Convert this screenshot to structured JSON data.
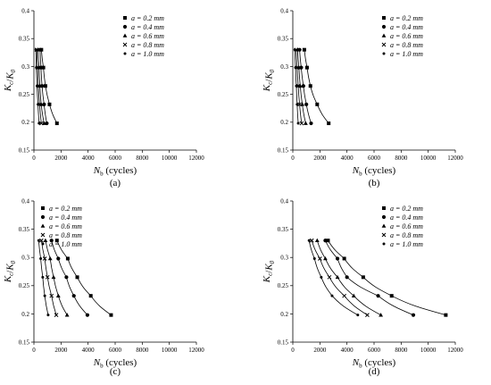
{
  "chart_data": [
    {
      "type": "scatter",
      "panel_label": "(a)",
      "xlabel": "N_b (cycles)",
      "ylabel": "K_c/K_0",
      "xlim": [
        0,
        12000
      ],
      "ylim": [
        0.15,
        0.4
      ],
      "xticks": [
        0,
        2000,
        4000,
        6000,
        8000,
        10000,
        12000
      ],
      "yticks": [
        0.15,
        0.2,
        0.25,
        0.3,
        0.35,
        0.4
      ],
      "grid": false,
      "legend_position": "top-right",
      "series": [
        {
          "name": "a = 0.2 mm",
          "marker": "square",
          "x": [
            550,
            700,
            850,
            1150,
            1700
          ],
          "y": [
            0.33,
            0.298,
            0.265,
            0.232,
            0.198
          ]
        },
        {
          "name": "a = 0.4 mm",
          "marker": "circle",
          "x": [
            450,
            520,
            600,
            750,
            950
          ],
          "y": [
            0.33,
            0.298,
            0.265,
            0.232,
            0.198
          ]
        },
        {
          "name": "a = 0.6 mm",
          "marker": "triangle",
          "x": [
            300,
            380,
            440,
            540,
            750
          ],
          "y": [
            0.33,
            0.298,
            0.265,
            0.232,
            0.198
          ]
        },
        {
          "name": "a = 0.8 mm",
          "marker": "cross",
          "x": [
            200,
            270,
            330,
            420,
            550
          ],
          "y": [
            0.33,
            0.298,
            0.265,
            0.232,
            0.198
          ]
        },
        {
          "name": "a = 1.0 mm",
          "marker": "dot",
          "x": [
            150,
            180,
            230,
            300,
            380
          ],
          "y": [
            0.33,
            0.298,
            0.265,
            0.232,
            0.198
          ]
        }
      ]
    },
    {
      "type": "scatter",
      "panel_label": "(b)",
      "xlabel": "N_b (cycles)",
      "ylabel": "K_c/K_0",
      "xlim": [
        0,
        12000
      ],
      "ylim": [
        0.15,
        0.4
      ],
      "xticks": [
        0,
        2000,
        4000,
        6000,
        8000,
        10000,
        12000
      ],
      "yticks": [
        0.15,
        0.2,
        0.25,
        0.3,
        0.35,
        0.4
      ],
      "grid": false,
      "legend_position": "top-right",
      "series": [
        {
          "name": "a = 0.2 mm",
          "marker": "square",
          "x": [
            850,
            1050,
            1300,
            1800,
            2650
          ],
          "y": [
            0.33,
            0.298,
            0.265,
            0.232,
            0.198
          ]
        },
        {
          "name": "a = 0.4 mm",
          "marker": "circle",
          "x": [
            500,
            620,
            780,
            1000,
            1350
          ],
          "y": [
            0.33,
            0.298,
            0.265,
            0.232,
            0.198
          ]
        },
        {
          "name": "a = 0.6 mm",
          "marker": "triangle",
          "x": [
            350,
            450,
            550,
            700,
            950
          ],
          "y": [
            0.33,
            0.298,
            0.265,
            0.232,
            0.198
          ]
        },
        {
          "name": "a = 0.8 mm",
          "marker": "cross",
          "x": [
            250,
            320,
            400,
            500,
            650
          ],
          "y": [
            0.33,
            0.298,
            0.265,
            0.232,
            0.198
          ]
        },
        {
          "name": "a = 1.0 mm",
          "marker": "dot",
          "x": [
            150,
            200,
            260,
            320,
            400
          ],
          "y": [
            0.33,
            0.298,
            0.265,
            0.232,
            0.198
          ]
        }
      ]
    },
    {
      "type": "scatter",
      "panel_label": "(c)",
      "xlabel": "N_b (cycles)",
      "ylabel": "K_c/K_0",
      "xlim": [
        0,
        12000
      ],
      "ylim": [
        0.15,
        0.4
      ],
      "xticks": [
        0,
        2000,
        4000,
        6000,
        8000,
        10000,
        12000
      ],
      "yticks": [
        0.15,
        0.2,
        0.25,
        0.3,
        0.35,
        0.4
      ],
      "grid": false,
      "legend_position": "top-left",
      "series": [
        {
          "name": "a = 0.2 mm",
          "marker": "square",
          "x": [
            1700,
            2500,
            3200,
            4200,
            5700
          ],
          "y": [
            0.33,
            0.298,
            0.265,
            0.232,
            0.198
          ]
        },
        {
          "name": "a = 0.4 mm",
          "marker": "circle",
          "x": [
            1300,
            1800,
            2400,
            2950,
            3950
          ],
          "y": [
            0.33,
            0.298,
            0.265,
            0.232,
            0.198
          ]
        },
        {
          "name": "a = 0.6 mm",
          "marker": "triangle",
          "x": [
            850,
            1200,
            1450,
            1800,
            2450
          ],
          "y": [
            0.33,
            0.298,
            0.265,
            0.232,
            0.198
          ]
        },
        {
          "name": "a = 0.8 mm",
          "marker": "cross",
          "x": [
            550,
            800,
            1000,
            1300,
            1650
          ],
          "y": [
            0.33,
            0.298,
            0.265,
            0.232,
            0.198
          ]
        },
        {
          "name": "a = 1.0 mm",
          "marker": "dot",
          "x": [
            350,
            500,
            650,
            800,
            1050
          ],
          "y": [
            0.33,
            0.298,
            0.265,
            0.232,
            0.198
          ]
        }
      ]
    },
    {
      "type": "scatter",
      "panel_label": "(d)",
      "xlabel": "N_b (cycles)",
      "ylabel": "K_c/K_0",
      "xlim": [
        0,
        12000
      ],
      "ylim": [
        0.15,
        0.4
      ],
      "xticks": [
        0,
        2000,
        4000,
        6000,
        8000,
        10000,
        12000
      ],
      "yticks": [
        0.15,
        0.2,
        0.25,
        0.3,
        0.35,
        0.4
      ],
      "grid": false,
      "legend_position": "top-right",
      "series": [
        {
          "name": "a = 0.2 mm",
          "marker": "square",
          "x": [
            2600,
            3800,
            5200,
            7300,
            11300
          ],
          "y": [
            0.33,
            0.298,
            0.265,
            0.232,
            0.198
          ]
        },
        {
          "name": "a = 0.4 mm",
          "marker": "circle",
          "x": [
            2400,
            3300,
            4000,
            6300,
            8900
          ],
          "y": [
            0.33,
            0.298,
            0.265,
            0.232,
            0.198
          ]
        },
        {
          "name": "a = 0.6 mm",
          "marker": "triangle",
          "x": [
            1800,
            2400,
            3300,
            4500,
            6500
          ],
          "y": [
            0.33,
            0.298,
            0.265,
            0.232,
            0.198
          ]
        },
        {
          "name": "a = 0.8 mm",
          "marker": "cross",
          "x": [
            1400,
            2000,
            2700,
            3800,
            5500
          ],
          "y": [
            0.33,
            0.298,
            0.265,
            0.232,
            0.198
          ]
        },
        {
          "name": "a = 1.0 mm",
          "marker": "dot",
          "x": [
            1200,
            1600,
            2100,
            2900,
            4800
          ],
          "y": [
            0.33,
            0.298,
            0.265,
            0.232,
            0.198
          ]
        }
      ]
    }
  ]
}
